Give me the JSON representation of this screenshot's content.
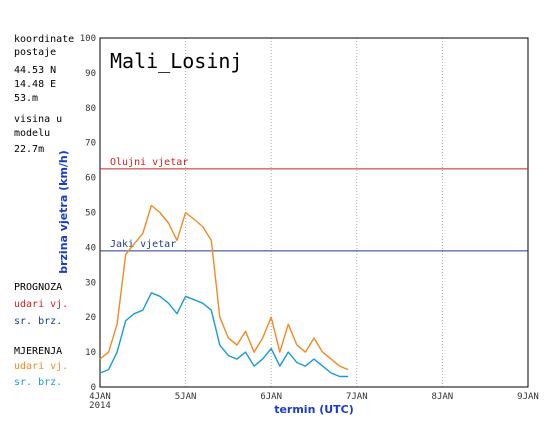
{
  "station_info": {
    "coord_label": "koordinate",
    "coord_label2": "postaje",
    "lat": "44.53 N",
    "lon": "14.48 E",
    "height": "53.m",
    "model_label": "visina u",
    "model_label2": "modelu",
    "model_height": "22.7m"
  },
  "legend": {
    "forecast_title": "PROGNOZA",
    "forecast_gust": "udari vj.",
    "forecast_mean": "sr. brz.",
    "measure_title": "MJERENJA",
    "measure_gust": "udari vj.",
    "measure_mean": "sr. brz."
  },
  "colors": {
    "gust": "#f08a24",
    "mean": "#1a9ad6",
    "storm": "#cc2222",
    "strong": "#1f3c88",
    "axis_label": "#1a3cc8",
    "forecast_gust": "#cc2222",
    "forecast_mean": "#1f3c88"
  },
  "chart_data": {
    "type": "line",
    "title": "Mali_Losinj",
    "xlabel": "termin (UTC)",
    "ylabel": "brzina vjetra (km/h)",
    "ylim": [
      0,
      100
    ],
    "yticks": [
      "0",
      "10",
      "20",
      "30",
      "40",
      "50",
      "60",
      "70",
      "80",
      "90",
      "100"
    ],
    "xlim": [
      0,
      5
    ],
    "xticks": [
      "4JAN",
      "5JAN",
      "6JAN",
      "7JAN",
      "8JAN",
      "9JAN"
    ],
    "xtick_sublabel": "2014",
    "thresholds": [
      {
        "name": "Olujni vjetar",
        "value": 62.5
      },
      {
        "name": "Jaki vjetar",
        "value": 39
      }
    ],
    "series": [
      {
        "name": "udari vj.",
        "x": [
          0,
          0.1,
          0.2,
          0.3,
          0.4,
          0.5,
          0.6,
          0.7,
          0.8,
          0.9,
          1.0,
          1.1,
          1.2,
          1.3,
          1.4,
          1.5,
          1.6,
          1.7,
          1.8,
          1.9,
          2.0,
          2.1,
          2.2,
          2.3,
          2.4,
          2.5,
          2.6,
          2.7,
          2.8,
          2.9
        ],
        "values": [
          8,
          10,
          18,
          38,
          41,
          44,
          52,
          50,
          47,
          42,
          50,
          48,
          46,
          42,
          20,
          14,
          12,
          16,
          10,
          14,
          20,
          10,
          18,
          12,
          10,
          14,
          10,
          8,
          6,
          5
        ]
      },
      {
        "name": "sr. brz.",
        "x": [
          0,
          0.1,
          0.2,
          0.3,
          0.4,
          0.5,
          0.6,
          0.7,
          0.8,
          0.9,
          1.0,
          1.1,
          1.2,
          1.3,
          1.4,
          1.5,
          1.6,
          1.7,
          1.8,
          1.9,
          2.0,
          2.1,
          2.2,
          2.3,
          2.4,
          2.5,
          2.6,
          2.7,
          2.8,
          2.9
        ],
        "values": [
          4,
          5,
          10,
          19,
          21,
          22,
          27,
          26,
          24,
          21,
          26,
          25,
          24,
          22,
          12,
          9,
          8,
          10,
          6,
          8,
          11,
          6,
          10,
          7,
          6,
          8,
          6,
          4,
          3,
          3
        ]
      }
    ]
  }
}
